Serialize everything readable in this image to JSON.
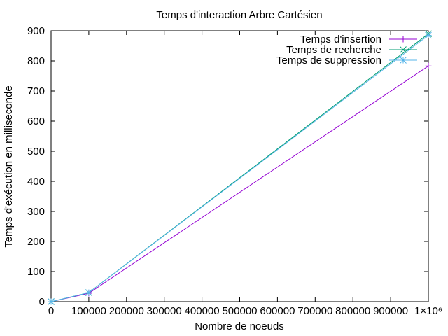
{
  "chart_data": {
    "type": "line",
    "title": "Temps d'interaction Arbre Cartésien",
    "xlabel": "Nombre de noeuds",
    "ylabel": "Temps d'exécution en milliseconde",
    "xlim": [
      0,
      1000000
    ],
    "ylim": [
      0,
      900
    ],
    "x_ticks": [
      0,
      100000,
      200000,
      300000,
      400000,
      500000,
      600000,
      700000,
      800000,
      900000,
      1000000
    ],
    "x_tick_labels": [
      "0",
      "100000",
      "200000",
      "300000",
      "400000",
      "500000",
      "600000",
      "700000",
      "800000",
      "900000",
      "1×10⁶"
    ],
    "y_ticks": [
      0,
      100,
      200,
      300,
      400,
      500,
      600,
      700,
      800,
      900
    ],
    "y_tick_labels": [
      "0",
      "100",
      "200",
      "300",
      "400",
      "500",
      "600",
      "700",
      "800",
      "900"
    ],
    "grid": false,
    "legend_position": "top-right",
    "x": [
      0,
      100000,
      1000000
    ],
    "series": [
      {
        "name": "Temps d'insertion",
        "values": [
          0,
          28,
          783
        ],
        "color": "#9400d3",
        "marker": "plus"
      },
      {
        "name": "Temps de recherche",
        "values": [
          0,
          30,
          890
        ],
        "color": "#009e73",
        "marker": "cross"
      },
      {
        "name": "Temps de suppression",
        "values": [
          0,
          30,
          885
        ],
        "color": "#56b4e9",
        "marker": "star"
      }
    ]
  }
}
